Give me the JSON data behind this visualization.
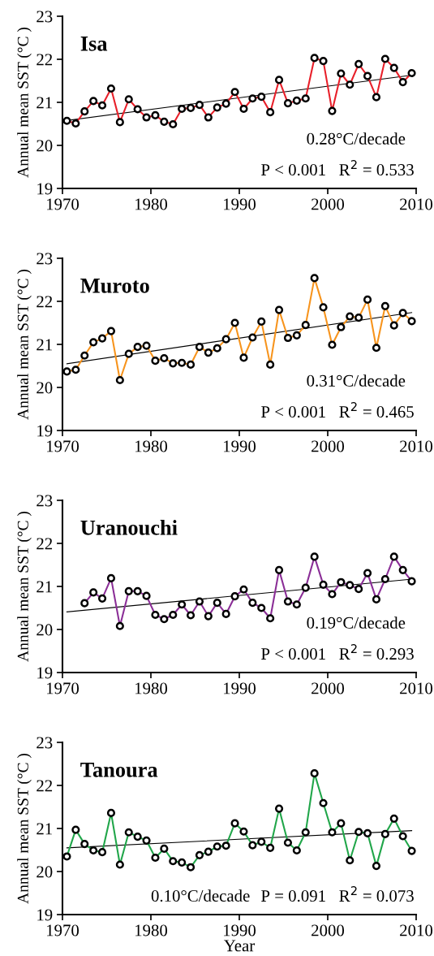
{
  "chart_data": [
    {
      "type": "line",
      "title": "Isa",
      "ylabel": "Annual mean SST (°C )",
      "marker": "circle",
      "xlim": [
        1970,
        2010
      ],
      "xticks": [
        1970,
        1980,
        1990,
        2000,
        2010
      ],
      "ylim": [
        19,
        23
      ],
      "yticks": [
        19,
        20,
        21,
        22,
        23
      ],
      "grid": false,
      "annotations": [
        "0.28°C/decade",
        "P < 0.001   R$^{2}$ = 0.533"
      ],
      "series": [
        {
          "color": "#e8202a",
          "x": [
            1970.5,
            1971.5,
            1972.5,
            1973.5,
            1974.5,
            1975.5,
            1976.5,
            1977.5,
            1978.5,
            1979.5,
            1980.5,
            1981.5,
            1982.5,
            1983.5,
            1984.5,
            1985.5,
            1986.5,
            1987.5,
            1988.5,
            1989.5,
            1990.5,
            1991.5,
            1992.5,
            1993.5,
            1994.5,
            1995.5,
            1996.5,
            1997.5,
            1998.5,
            1999.5,
            2000.5,
            2001.5,
            2002.5,
            2003.5,
            2004.5,
            2005.5,
            2006.5,
            2007.5,
            2008.5,
            2009.5
          ],
          "values": [
            20.57,
            20.51,
            20.79,
            21.03,
            20.93,
            21.32,
            20.54,
            21.07,
            20.84,
            20.65,
            20.7,
            20.55,
            20.49,
            20.85,
            20.87,
            20.94,
            20.65,
            20.88,
            20.97,
            21.24,
            20.85,
            21.09,
            21.13,
            20.77,
            21.52,
            20.98,
            21.04,
            21.09,
            22.03,
            21.96,
            20.8,
            21.67,
            21.41,
            21.89,
            21.61,
            21.12,
            22.01,
            21.8,
            21.47,
            21.68
          ]
        },
        {
          "type": "line",
          "color": "#000000",
          "marker": "none",
          "x": [
            1970.5,
            2009.5
          ],
          "values": [
            20.58,
            21.63
          ]
        }
      ]
    },
    {
      "type": "line",
      "title": "Muroto",
      "ylabel": "Annual mean SST (°C )",
      "marker": "circle",
      "xlim": [
        1970,
        2010
      ],
      "xticks": [
        1970,
        1980,
        1990,
        2000,
        2010
      ],
      "ylim": [
        19,
        23
      ],
      "yticks": [
        19,
        20,
        21,
        22,
        23
      ],
      "grid": false,
      "annotations": [
        "0.31°C/decade",
        "P < 0.001   R$^{2}$ = 0.465"
      ],
      "series": [
        {
          "color": "#f7941d",
          "x": [
            1970.5,
            1971.5,
            1972.5,
            1973.5,
            1974.5,
            1975.5,
            1976.5,
            1977.5,
            1978.5,
            1979.5,
            1980.5,
            1981.5,
            1982.5,
            1983.5,
            1984.5,
            1985.5,
            1986.5,
            1987.5,
            1988.5,
            1989.5,
            1990.5,
            1991.5,
            1992.5,
            1993.5,
            1994.5,
            1995.5,
            1996.5,
            1997.5,
            1998.5,
            1999.5,
            2000.5,
            2001.5,
            2002.5,
            2003.5,
            2004.5,
            2005.5,
            2006.5,
            2007.5,
            2008.5,
            2009.5
          ],
          "values": [
            20.37,
            20.41,
            20.74,
            21.05,
            21.14,
            21.31,
            20.17,
            20.78,
            20.94,
            20.97,
            20.62,
            20.68,
            20.56,
            20.57,
            20.53,
            20.94,
            20.81,
            20.91,
            21.12,
            21.5,
            20.69,
            21.16,
            21.53,
            20.53,
            21.8,
            21.15,
            21.21,
            21.45,
            22.54,
            21.86,
            20.99,
            21.4,
            21.65,
            21.62,
            22.04,
            20.92,
            21.89,
            21.44,
            21.73,
            21.54
          ]
        },
        {
          "type": "line",
          "color": "#000000",
          "marker": "none",
          "x": [
            1970.5,
            2009.5
          ],
          "values": [
            20.55,
            21.74
          ]
        }
      ]
    },
    {
      "type": "line",
      "title": "Uranouchi",
      "ylabel": "Annual mean SST (°C )",
      "marker": "circle",
      "xlim": [
        1970,
        2010
      ],
      "xticks": [
        1970,
        1980,
        1990,
        2000,
        2010
      ],
      "ylim": [
        19,
        23
      ],
      "yticks": [
        19,
        20,
        21,
        22,
        23
      ],
      "grid": false,
      "annotations": [
        "0.19°C/decade",
        "P < 0.001   R$^{2}$ = 0.293"
      ],
      "series": [
        {
          "color": "#8b2f97",
          "x": [
            1972.5,
            1973.5,
            1974.5,
            1975.5,
            1976.5,
            1977.5,
            1978.5,
            1979.5,
            1980.5,
            1981.5,
            1982.5,
            1983.5,
            1984.5,
            1985.5,
            1986.5,
            1987.5,
            1988.5,
            1989.5,
            1990.5,
            1991.5,
            1992.5,
            1993.5,
            1994.5,
            1995.5,
            1996.5,
            1997.5,
            1998.5,
            1999.5,
            2000.5,
            2001.5,
            2002.5,
            2003.5,
            2004.5,
            2005.5,
            2006.5,
            2007.5,
            2008.5,
            2009.5
          ],
          "values": [
            20.61,
            20.86,
            20.72,
            21.19,
            20.08,
            20.89,
            20.89,
            20.78,
            20.34,
            20.24,
            20.34,
            20.58,
            20.33,
            20.65,
            20.31,
            20.62,
            20.36,
            20.77,
            20.93,
            20.62,
            20.5,
            20.26,
            21.38,
            20.65,
            20.58,
            20.97,
            21.69,
            21.04,
            20.82,
            21.1,
            21.03,
            20.94,
            21.31,
            20.7,
            21.17,
            21.69,
            21.38,
            21.12
          ]
        },
        {
          "type": "line",
          "color": "#000000",
          "marker": "none",
          "x": [
            1970.5,
            2009.5
          ],
          "values": [
            20.41,
            21.17
          ]
        }
      ]
    },
    {
      "type": "line",
      "title": "Tanoura",
      "ylabel": "Annual mean SST (°C )",
      "xlabel": "Year",
      "marker": "circle",
      "xlim": [
        1970,
        2010
      ],
      "xticks": [
        1970,
        1980,
        1990,
        2000,
        2010
      ],
      "ylim": [
        19,
        23
      ],
      "yticks": [
        19,
        20,
        21,
        22,
        23
      ],
      "grid": false,
      "annotations": [
        "0.10°C/decade",
        "P = 0.091   R$^{2}$ = 0.073"
      ],
      "series": [
        {
          "color": "#21a64a",
          "x": [
            1970.5,
            1971.5,
            1972.5,
            1973.5,
            1974.5,
            1975.5,
            1976.5,
            1977.5,
            1978.5,
            1979.5,
            1980.5,
            1981.5,
            1982.5,
            1983.5,
            1984.5,
            1985.5,
            1986.5,
            1987.5,
            1988.5,
            1989.5,
            1990.5,
            1991.5,
            1992.5,
            1993.5,
            1994.5,
            1995.5,
            1996.5,
            1997.5,
            1998.5,
            1999.5,
            2000.5,
            2001.5,
            2002.5,
            2003.5,
            2004.5,
            2005.5,
            2006.5,
            2007.5,
            2008.5,
            2009.5
          ],
          "values": [
            20.35,
            20.97,
            20.64,
            20.49,
            20.45,
            21.36,
            20.16,
            20.91,
            20.81,
            20.72,
            20.32,
            20.53,
            20.24,
            20.21,
            20.1,
            20.38,
            20.46,
            20.58,
            20.6,
            21.12,
            20.93,
            20.61,
            20.69,
            20.55,
            21.46,
            20.67,
            20.49,
            20.91,
            22.28,
            21.59,
            20.91,
            21.12,
            20.26,
            20.92,
            20.89,
            20.13,
            20.87,
            21.23,
            20.82,
            20.48
          ]
        },
        {
          "type": "line",
          "color": "#000000",
          "marker": "none",
          "x": [
            1970.5,
            2009.5
          ],
          "values": [
            20.55,
            20.95
          ]
        }
      ]
    }
  ]
}
